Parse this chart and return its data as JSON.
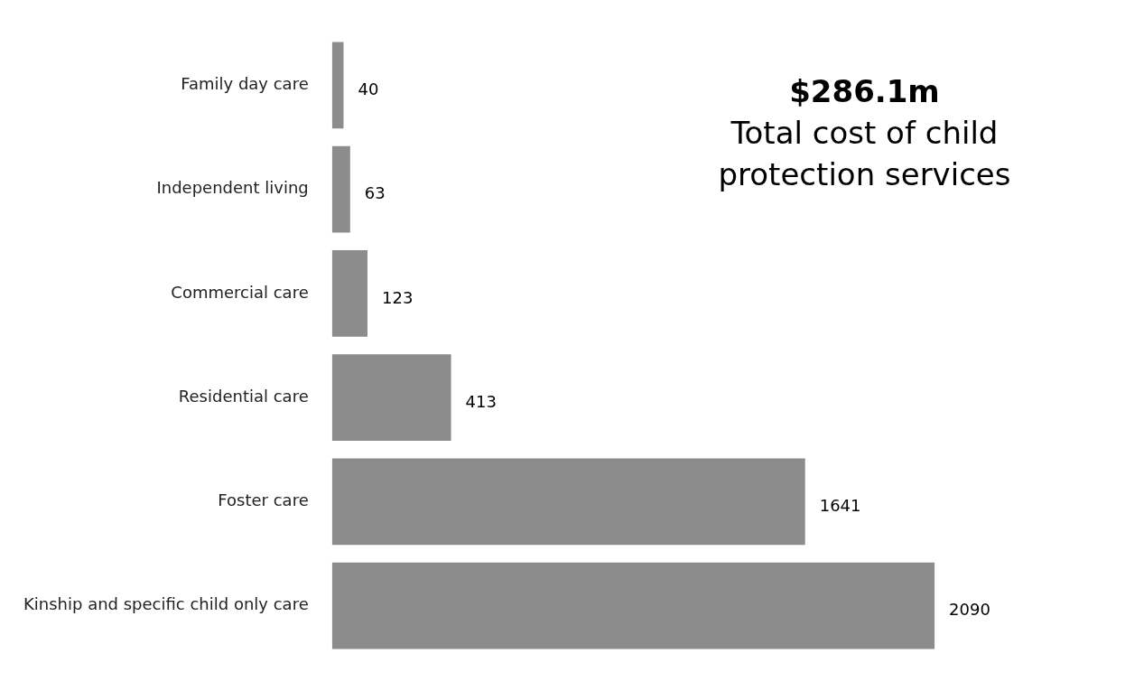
{
  "chart_data": {
    "type": "bar",
    "orientation": "horizontal",
    "categories": [
      "Family day care",
      "Independent living",
      "Commercial care",
      "Residential care",
      "Foster care",
      "Kinship and specific child only care"
    ],
    "values": [
      40,
      63,
      123,
      413,
      1641,
      2090
    ],
    "color": "#8c8c8c",
    "tick_labels": "y",
    "data_labels": true,
    "legend": false,
    "annotations": [
      "$286.1m",
      "Total cost of child protection services"
    ]
  }
}
